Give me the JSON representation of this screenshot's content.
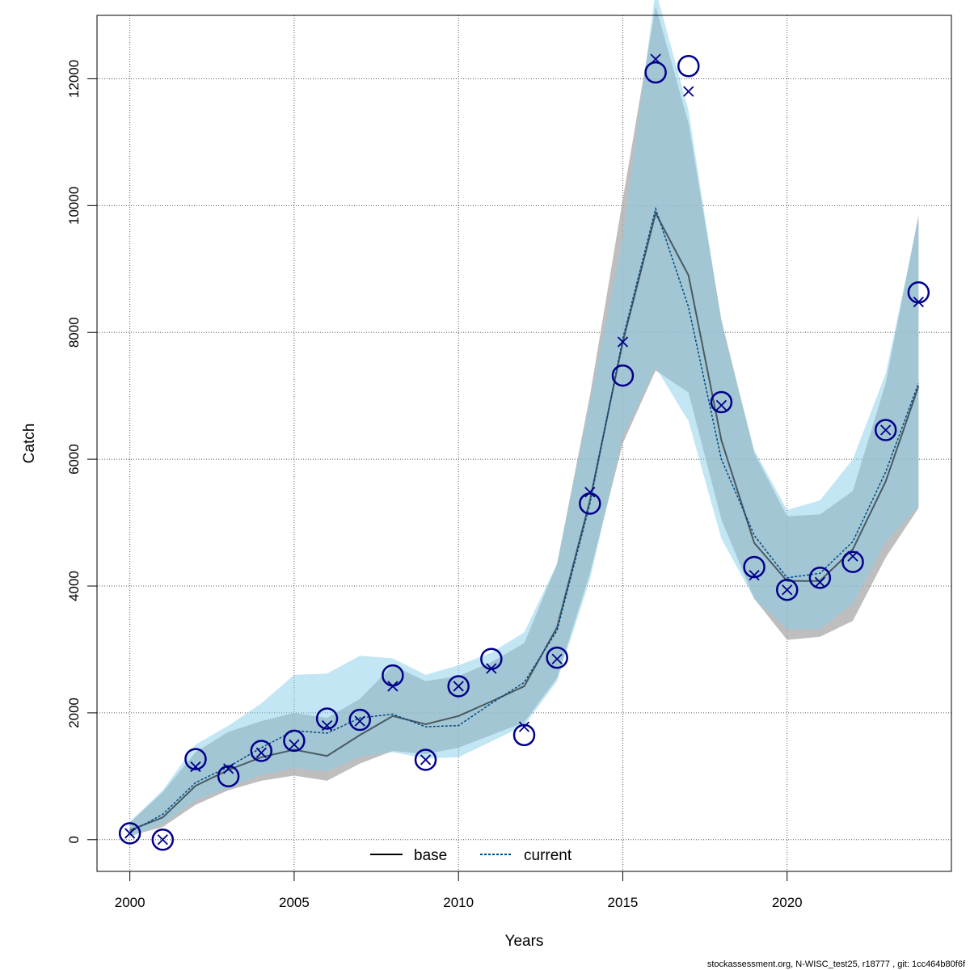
{
  "chart_data": {
    "type": "line",
    "xlabel": "Years",
    "ylabel": "Catch",
    "xlim": [
      1999,
      2025
    ],
    "ylim": [
      -500,
      13000
    ],
    "xticks": [
      2000,
      2005,
      2010,
      2015,
      2020
    ],
    "yticks": [
      0,
      2000,
      4000,
      6000,
      8000,
      10000,
      12000
    ],
    "grid": true,
    "legend_position": "bottom-center",
    "years": [
      2000,
      2001,
      2002,
      2003,
      2004,
      2005,
      2006,
      2007,
      2008,
      2009,
      2010,
      2011,
      2012,
      2013,
      2014,
      2015,
      2016,
      2017,
      2018,
      2019,
      2020,
      2021,
      2022,
      2023,
      2024
    ],
    "series": [
      {
        "name": "base",
        "line_style": "solid",
        "line_color": "#000000",
        "band_color": "#a8a8a8",
        "median": [
          150,
          350,
          850,
          1100,
          1300,
          1420,
          1320,
          1650,
          1950,
          1820,
          1950,
          2180,
          2420,
          3350,
          5350,
          7850,
          9880,
          8900,
          6300,
          4680,
          4080,
          4080,
          4580,
          5650,
          7150
        ],
        "lower": [
          60,
          200,
          550,
          780,
          930,
          1010,
          930,
          1200,
          1400,
          1350,
          1450,
          1650,
          1850,
          2550,
          4200,
          6250,
          7400,
          7050,
          5050,
          3800,
          3150,
          3200,
          3450,
          4450,
          5230
        ],
        "upper": [
          270,
          750,
          1380,
          1700,
          1870,
          2000,
          1920,
          2220,
          2750,
          2500,
          2580,
          2800,
          3100,
          4350,
          7000,
          10100,
          13150,
          11300,
          8200,
          6100,
          5100,
          5130,
          5500,
          7200,
          9850
        ]
      },
      {
        "name": "current",
        "line_style": "dashed",
        "line_color": "#004a80",
        "band_color": "#87ceeb",
        "median": [
          120,
          400,
          900,
          1150,
          1450,
          1720,
          1680,
          1920,
          1980,
          1780,
          1800,
          2150,
          2480,
          3300,
          5300,
          7900,
          9950,
          8400,
          6000,
          4800,
          4130,
          4200,
          4700,
          5800,
          7200
        ],
        "lower": [
          40,
          250,
          620,
          820,
          1020,
          1130,
          1080,
          1310,
          1380,
          1280,
          1300,
          1550,
          1800,
          2500,
          4100,
          6350,
          7450,
          6600,
          4750,
          3800,
          3320,
          3320,
          3720,
          4700,
          5250
        ],
        "upper": [
          280,
          780,
          1500,
          1800,
          2150,
          2600,
          2620,
          2900,
          2860,
          2600,
          2750,
          2950,
          3270,
          4350,
          6900,
          9500,
          13400,
          11500,
          8150,
          6150,
          5200,
          5350,
          6000,
          7350,
          9800
        ]
      }
    ],
    "observed": {
      "marker": "circle",
      "color": "#00008b",
      "values": [
        100,
        0,
        1270,
        1000,
        1400,
        1560,
        1910,
        1890,
        2590,
        1260,
        2420,
        2850,
        1650,
        2870,
        5300,
        7320,
        12100,
        12200,
        6900,
        4300,
        3940,
        4130,
        4380,
        6460,
        8630
      ]
    },
    "expected": {
      "marker": "x",
      "color": "#00008b",
      "values": [
        100,
        0,
        1150,
        1120,
        1370,
        1500,
        1800,
        1870,
        2420,
        1260,
        2420,
        2700,
        1780,
        2850,
        5480,
        7850,
        12310,
        11800,
        6850,
        4170,
        3940,
        4060,
        4470,
        6460,
        8480
      ]
    }
  },
  "footer": {
    "text": "stockassessment.org, N-WISC_test25, r18777 , git: 1cc464b80f6f"
  }
}
